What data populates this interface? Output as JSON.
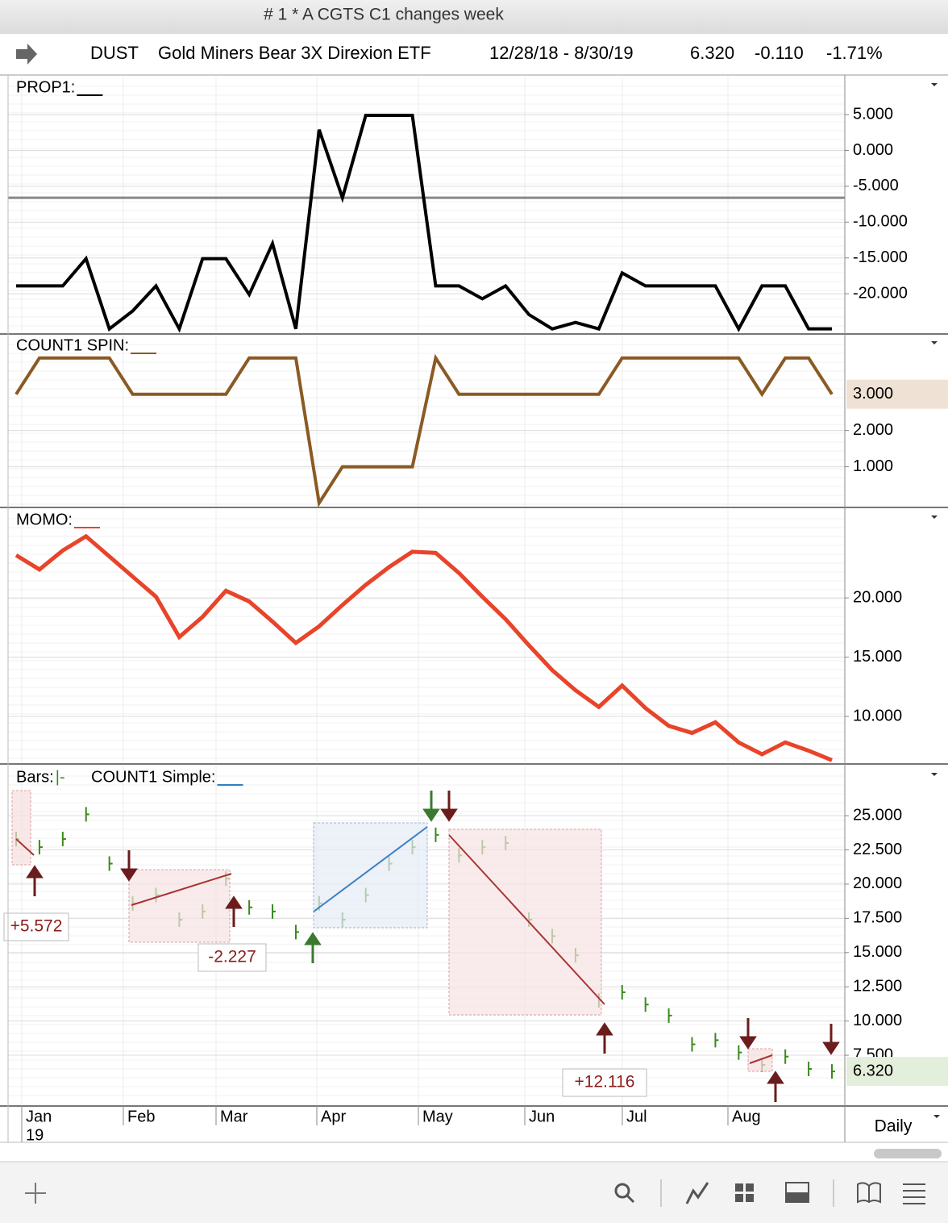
{
  "window": {
    "title": "# 1 * A CGTS  C1 changes week"
  },
  "header": {
    "symbol": "DUST",
    "name": "Gold Miners Bear 3X Direxion ETF",
    "range": "12/28/18 - 8/30/19",
    "last": "6.320",
    "change": "-0.110",
    "change_pct": "-1.71%"
  },
  "chart_data": [
    {
      "type": "line",
      "legend": "PROP1:",
      "ylim": [
        -25.5,
        10.3
      ],
      "yticks": [
        {
          "value": 5,
          "label": "5.000"
        },
        {
          "value": 0,
          "label": "0.000"
        },
        {
          "value": -5,
          "label": "-5.000"
        },
        {
          "value": -10,
          "label": "-10.000"
        },
        {
          "value": -15,
          "label": "-15.000"
        },
        {
          "value": -20,
          "label": "-20.000"
        }
      ],
      "hline": -6.6,
      "series": [
        {
          "name": "PROP1",
          "color": "#000000",
          "values": [
            -18.9,
            -18.9,
            -18.9,
            -15.1,
            -24.9,
            -22.4,
            -18.9,
            -24.9,
            -15.1,
            -15.1,
            -20.1,
            -13.0,
            -24.9,
            2.9,
            -6.6,
            4.9,
            4.9,
            4.9,
            -18.9,
            -18.9,
            -20.7,
            -18.9,
            -22.9,
            -24.9,
            -24.0,
            -24.9,
            -17.1,
            -18.9,
            -18.9,
            -18.9,
            -18.9,
            -24.9,
            -18.9,
            -18.9,
            -24.9,
            -24.9
          ]
        }
      ]
    },
    {
      "type": "line",
      "legend": "COUNT1 SPIN:",
      "ylim": [
        -0.1,
        4.64
      ],
      "yticks": [
        {
          "value": 2,
          "label": "2.000"
        },
        {
          "value": 1,
          "label": "1.000"
        }
      ],
      "last_value": {
        "value": 3,
        "label": "3.000",
        "color": "#efe2d4"
      },
      "series": [
        {
          "name": "COUNT1 SPIN",
          "color": "#8b5a24",
          "values": [
            3,
            4,
            4,
            4,
            4,
            3,
            3,
            3,
            3,
            3,
            4,
            4,
            4,
            0,
            1,
            1,
            1,
            1,
            4,
            3,
            3,
            3,
            3,
            3,
            3,
            3,
            4,
            4,
            4,
            4,
            4,
            4,
            3,
            4,
            4,
            3
          ]
        }
      ]
    },
    {
      "type": "line",
      "legend": "MOMO:",
      "ylim": [
        6.05,
        27.5
      ],
      "yticks": [
        {
          "value": 20,
          "label": "20.000"
        },
        {
          "value": 15,
          "label": "15.000"
        },
        {
          "value": 10,
          "label": "10.000"
        }
      ],
      "series": [
        {
          "name": "MOMO",
          "color": "#e8442a",
          "values": [
            23.6,
            22.4,
            24.0,
            25.2,
            23.5,
            21.8,
            20.1,
            16.7,
            18.4,
            20.6,
            19.7,
            18.0,
            16.2,
            17.6,
            19.4,
            21.1,
            22.6,
            23.9,
            23.8,
            22.1,
            20.1,
            18.2,
            16.0,
            13.9,
            12.2,
            10.8,
            12.6,
            10.7,
            9.2,
            8.6,
            9.5,
            7.8,
            6.8,
            7.8,
            7.1,
            6.3
          ]
        }
      ]
    },
    {
      "type": "price_bars",
      "legend": "Bars:",
      "legend_glyph": "|-",
      "legend2": "COUNT1 Simple:",
      "legend2_color": "#2f7fc1",
      "ylim": [
        3.85,
        28.6
      ],
      "yticks": [
        {
          "value": 25,
          "label": "25.000"
        },
        {
          "value": 22.5,
          "label": "22.500"
        },
        {
          "value": 20,
          "label": "20.000"
        },
        {
          "value": 17.5,
          "label": "17.500"
        },
        {
          "value": 15,
          "label": "15.000"
        },
        {
          "value": 12.5,
          "label": "12.500"
        },
        {
          "value": 10,
          "label": "10.000"
        },
        {
          "value": 7.5,
          "label": "7.500"
        }
      ],
      "last_value": {
        "value": 6.32,
        "label": "6.320",
        "color": "#e3efdb"
      },
      "series": [
        {
          "name": "Bars",
          "color": "#3a8a1e",
          "values": [
            23.3,
            22.7,
            23.3,
            25.1,
            21.5,
            18.6,
            19.2,
            17.4,
            18.0,
            20.4,
            18.3,
            18.0,
            16.5,
            18.6,
            17.4,
            19.2,
            21.5,
            22.7,
            23.6,
            22.1,
            22.7,
            23.0,
            17.4,
            16.2,
            14.8,
            11.5,
            12.1,
            11.2,
            10.4,
            8.3,
            8.6,
            7.7,
            6.8,
            7.4,
            6.5,
            6.32
          ]
        }
      ]
    }
  ],
  "trade_labels": [
    "+5.572",
    "-2.227",
    "+12.116"
  ],
  "x_axis": {
    "labels": [
      "Jan",
      "Feb",
      "Mar",
      "Apr",
      "May",
      "Jun",
      "Jul",
      "Aug"
    ],
    "year_label": "19"
  },
  "interval": "Daily"
}
